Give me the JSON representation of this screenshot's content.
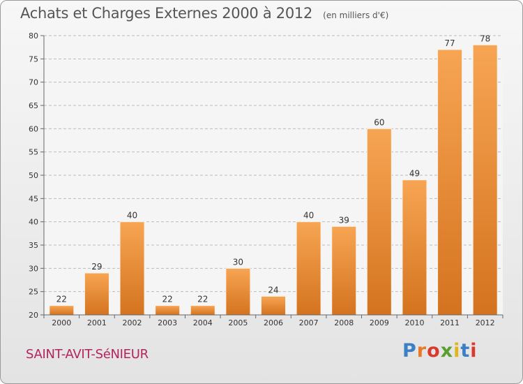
{
  "title": "Achats et Charges Externes 2000 à 2012",
  "subtitle": "(en milliers d'€)",
  "commune": "SAINT-AVIT-SéNIEUR",
  "brand": {
    "text": "Proxiti",
    "letter_colors": [
      "#3b7fc4",
      "#e8792a",
      "#d83a2e",
      "#5a9e2f",
      "#e0b41c",
      "#3b7fc4",
      "#d83a2e"
    ]
  },
  "colors": {
    "bar_top": "#f7a553",
    "bar_bottom": "#d4731f",
    "bar_edge": "#f8f0e6",
    "grid": "#bbbbbb",
    "axis": "#666666",
    "plot_bg": "#f5f5f5"
  },
  "chart_data": {
    "type": "bar",
    "categories": [
      "2000",
      "2001",
      "2002",
      "2003",
      "2004",
      "2005",
      "2006",
      "2007",
      "2008",
      "2009",
      "2010",
      "2011",
      "2012"
    ],
    "values": [
      22,
      29,
      40,
      22,
      22,
      30,
      24,
      40,
      39,
      60,
      49,
      77,
      78
    ],
    "data_labels": [
      "22",
      "29",
      "40",
      "22",
      "22",
      "30",
      "24",
      "40",
      "39",
      "60",
      "49",
      "77",
      "78"
    ],
    "ylim": [
      20,
      80
    ],
    "yticks": [
      20,
      25,
      30,
      35,
      40,
      45,
      50,
      55,
      60,
      65,
      70,
      75,
      80
    ],
    "grid": true,
    "xlabel": "",
    "ylabel": ""
  }
}
